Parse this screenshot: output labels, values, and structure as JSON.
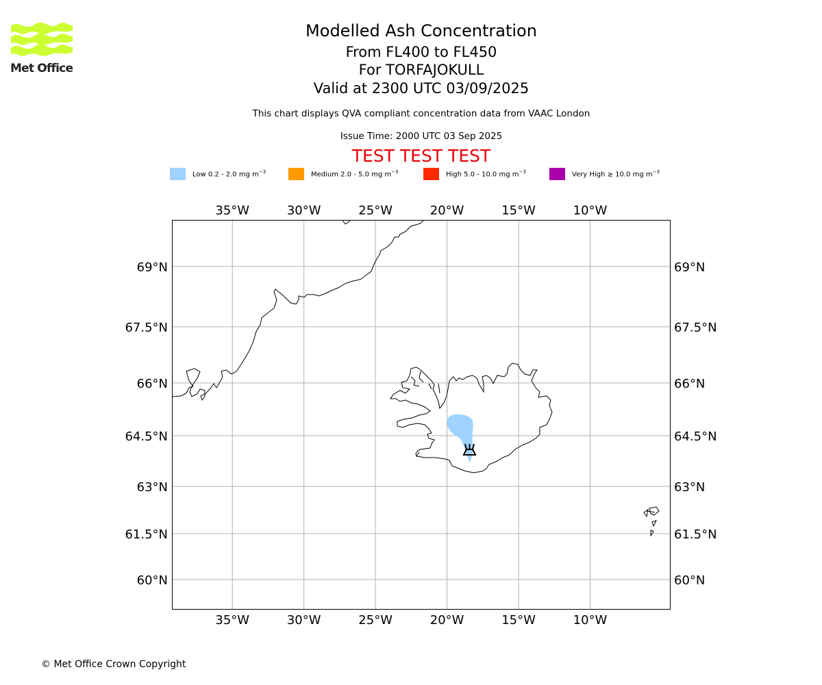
{
  "logo": {
    "text": "Met Office",
    "color": "#ccff33"
  },
  "header": {
    "title": "Modelled Ash Concentration",
    "levels": "From FL400 to FL450",
    "volcano": "For TORFAJOKULL",
    "valid": "Valid at 2300 UTC 03/09/2025",
    "description": "This chart displays QVA compliant concentration data from VAAC London",
    "issue": "Issue Time: 2000 UTC 03 Sep 2025",
    "test": "TEST TEST TEST"
  },
  "legend": [
    {
      "label": "Low 0.2 - 2.0 mg m",
      "color": "#a0d2ff"
    },
    {
      "label": "Medium 2.0 - 5.0 mg m",
      "color": "#ff9900"
    },
    {
      "label": "High 5.0 - 10.0 mg m",
      "color": "#ff2a00"
    },
    {
      "label": "Very High  ≥  10.0 mg m",
      "color": "#aa00aa"
    }
  ],
  "legend_unit_exponent": "−3",
  "map": {
    "lon_range": [
      -39.2,
      -4.4
    ],
    "lat_range": [
      59.0,
      70.3
    ],
    "lon_ticks": [
      -35,
      -30,
      -25,
      -20,
      -15,
      -10
    ],
    "lat_ticks": [
      60,
      61.5,
      63,
      64.5,
      66,
      67.5,
      69
    ],
    "lon_tick_labels": [
      "35°W",
      "30°W",
      "25°W",
      "20°W",
      "15°W",
      "10°W"
    ],
    "lat_tick_labels": [
      "60°N",
      "61.5°N",
      "63°N",
      "64.5°N",
      "66°N",
      "67.5°N",
      "69°N"
    ],
    "grid": true,
    "volcano_name": "TORFAJOKULL",
    "volcano_symbol": "volcano-icon",
    "ash_level": "Low",
    "ash_color": "#a0d2ff"
  },
  "footer": {
    "copyright": "© Met Office Crown Copyright"
  }
}
